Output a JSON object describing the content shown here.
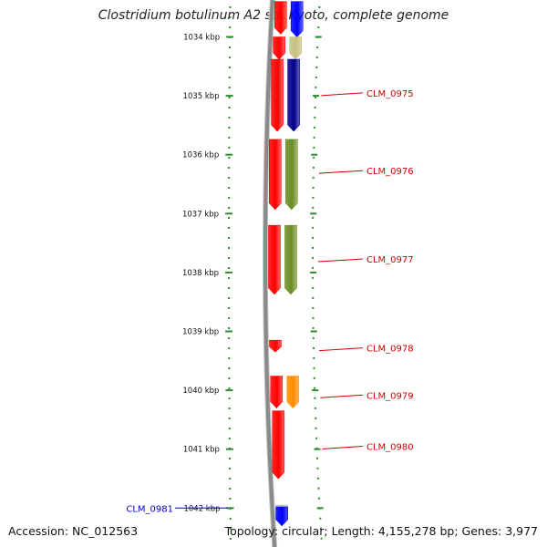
{
  "title": "Clostridium botulinum A2 str. Kyoto, complete genome",
  "footer": {
    "accession": "Accession: NC_012563",
    "summary": "Topology: circular; Length: 4,155,278 bp; Genes: 3,977"
  },
  "colors": {
    "backbone": "#8a8a8a",
    "tick": "#2e8b2e",
    "label_red": "#cc0000",
    "label_blue": "#0000cc",
    "cds_red": "#ff0000",
    "cds_blue": "#0000ff",
    "cds_navy": "#00008b",
    "cds_olive": "#6b8e23",
    "cds_orange": "#ff8c00",
    "cds_khaki": "#c8c080",
    "cds_gray": "#b8b8b8"
  },
  "axis": {
    "start_kbp": 1034,
    "end_kbp": 1042,
    "unit": "kbp",
    "tick_labels": [
      "1034 kbp",
      "1035 kbp",
      "1036 kbp",
      "1037 kbp",
      "1038 kbp",
      "1039 kbp",
      "1040 kbp",
      "1041 kbp",
      "1042 kbp"
    ]
  },
  "features": [
    {
      "type": "cds",
      "strand": "+",
      "start_kbp": 1033.4,
      "end_kbp": 1033.95,
      "color": "cds_red"
    },
    {
      "type": "cds",
      "strand": "-",
      "start_kbp": 1033.4,
      "end_kbp": 1034.0,
      "color": "cds_blue"
    },
    {
      "type": "cds",
      "strand": "+",
      "start_kbp": 1034.0,
      "end_kbp": 1034.38,
      "color": "cds_red"
    },
    {
      "type": "cds",
      "strand": "-",
      "start_kbp": 1034.0,
      "end_kbp": 1034.38,
      "color": "cds_khaki"
    },
    {
      "type": "cds",
      "strand": "+",
      "start_kbp": 1034.38,
      "end_kbp": 1035.6,
      "color": "cds_red"
    },
    {
      "type": "cds",
      "strand": "-",
      "start_kbp": 1034.38,
      "end_kbp": 1035.6,
      "color": "cds_navy"
    },
    {
      "type": "cds",
      "strand": "+",
      "start_kbp": 1035.74,
      "end_kbp": 1036.93,
      "color": "cds_red"
    },
    {
      "type": "cds",
      "strand": "-",
      "start_kbp": 1035.74,
      "end_kbp": 1036.93,
      "color": "cds_olive"
    },
    {
      "type": "cds",
      "strand": "+",
      "start_kbp": 1037.2,
      "end_kbp": 1038.37,
      "color": "cds_red"
    },
    {
      "type": "cds",
      "strand": "-",
      "start_kbp": 1037.2,
      "end_kbp": 1038.37,
      "color": "cds_olive"
    },
    {
      "type": "cds",
      "strand": "+",
      "start_kbp": 1039.15,
      "end_kbp": 1039.35,
      "color": "cds_red"
    },
    {
      "type": "cds",
      "strand": "+",
      "start_kbp": 1039.76,
      "end_kbp": 1040.3,
      "color": "cds_red"
    },
    {
      "type": "cds",
      "strand": "-",
      "start_kbp": 1039.76,
      "end_kbp": 1040.3,
      "color": "cds_orange"
    },
    {
      "type": "cds",
      "strand": "+",
      "start_kbp": 1040.35,
      "end_kbp": 1041.5,
      "color": "cds_red"
    },
    {
      "type": "cds",
      "strand": "+",
      "start_kbp": 1041.95,
      "end_kbp": 1042.3,
      "color": "cds_gray"
    },
    {
      "type": "cds",
      "strand": "+",
      "start_kbp": 1041.98,
      "end_kbp": 1042.3,
      "color": "cds_blue"
    }
  ],
  "gene_labels": [
    {
      "text": "CLM_0975",
      "at_kbp": 1034.95,
      "side": "right",
      "color": "label_red"
    },
    {
      "text": "CLM_0976",
      "at_kbp": 1036.27,
      "side": "right",
      "color": "label_red"
    },
    {
      "text": "CLM_0977",
      "at_kbp": 1037.77,
      "side": "right",
      "color": "label_red"
    },
    {
      "text": "CLM_0978",
      "at_kbp": 1039.28,
      "side": "right",
      "color": "label_red"
    },
    {
      "text": "CLM_0979",
      "at_kbp": 1040.08,
      "side": "right",
      "color": "label_red"
    },
    {
      "text": "CLM_0980",
      "at_kbp": 1040.95,
      "side": "right",
      "color": "label_red"
    },
    {
      "text": "CLM_0981",
      "at_kbp": 1042.0,
      "side": "left",
      "color": "label_blue"
    }
  ]
}
